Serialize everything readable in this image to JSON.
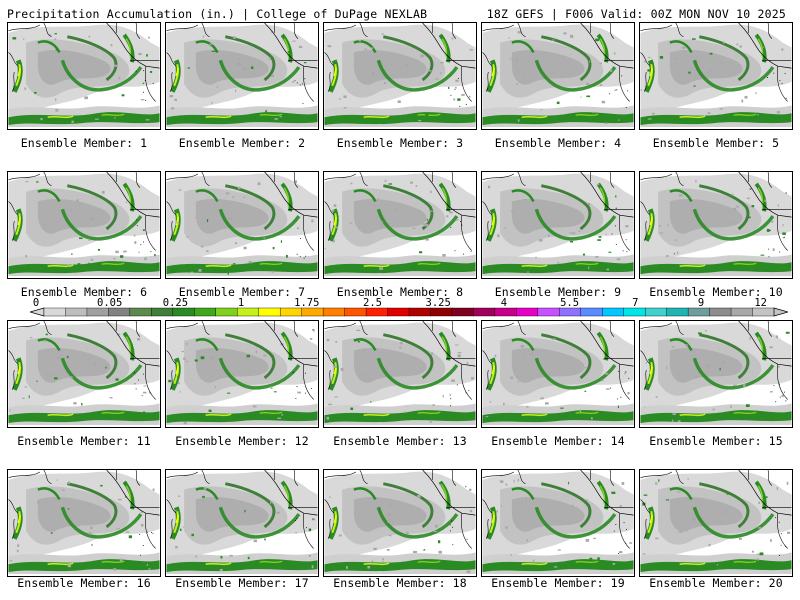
{
  "header": {
    "title_left": "Precipitation Accumulation (in.) | College of DuPage NEXLAB",
    "title_right": "18Z GEFS | F006 Valid: 00Z MON NOV 10 2025"
  },
  "panels": [
    {
      "label": "Ensemble Member: 1"
    },
    {
      "label": "Ensemble Member: 2"
    },
    {
      "label": "Ensemble Member: 3"
    },
    {
      "label": "Ensemble Member: 4"
    },
    {
      "label": "Ensemble Member: 5"
    },
    {
      "label": "Ensemble Member: 6"
    },
    {
      "label": "Ensemble Member: 7"
    },
    {
      "label": "Ensemble Member: 8"
    },
    {
      "label": "Ensemble Member: 9"
    },
    {
      "label": "Ensemble Member: 10"
    },
    {
      "label": "Ensemble Member: 11"
    },
    {
      "label": "Ensemble Member: 12"
    },
    {
      "label": "Ensemble Member: 13"
    },
    {
      "label": "Ensemble Member: 14"
    },
    {
      "label": "Ensemble Member: 15"
    },
    {
      "label": "Ensemble Member: 16"
    },
    {
      "label": "Ensemble Member: 17"
    },
    {
      "label": "Ensemble Member: 18"
    },
    {
      "label": "Ensemble Member: 19"
    },
    {
      "label": "Ensemble Member: 20"
    }
  ],
  "colorbar": {
    "labels": [
      "0",
      "0.05",
      "0.25",
      "1",
      "1.75",
      "2.5",
      "3.25",
      "4",
      "5.5",
      "7",
      "9",
      "12"
    ],
    "colors": [
      "#d9d9d9",
      "#bdbdbd",
      "#a0a0a0",
      "#828282",
      "#5d8a4f",
      "#3f7f3a",
      "#2a8a23",
      "#41a81c",
      "#7fd11d",
      "#c6f01b",
      "#ffff00",
      "#ffd400",
      "#ffaa00",
      "#ff8000",
      "#ff5500",
      "#ff2200",
      "#e00000",
      "#b00000",
      "#900000",
      "#800020",
      "#a0005a",
      "#c8008c",
      "#e600c8",
      "#c850ff",
      "#9070ff",
      "#5a8cff",
      "#00c8ff",
      "#00e6e6",
      "#40d0d0",
      "#20b4b4",
      "#6e9e9e",
      "#8c8c8c",
      "#a8a8a8",
      "#c4c4c4"
    ]
  }
}
